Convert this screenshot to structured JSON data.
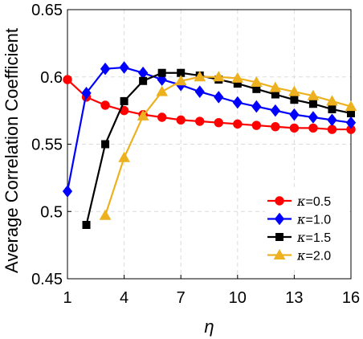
{
  "chart_data": {
    "type": "line",
    "title": "",
    "xlabel": "η",
    "ylabel": "Average Correlation Coefficient",
    "xlim": [
      1,
      16
    ],
    "ylim": [
      0.45,
      0.65
    ],
    "xticks": [
      1,
      4,
      7,
      10,
      13,
      16
    ],
    "xtick_labels": [
      "1",
      "4",
      "7",
      "10",
      "13",
      "16"
    ],
    "yticks": [
      0.45,
      0.5,
      0.55,
      0.6,
      0.65
    ],
    "ytick_labels": [
      "0.45",
      "0.5",
      "0.55",
      "0.6",
      "0.65"
    ],
    "grid": true,
    "legend_position": "bottom-right",
    "series": [
      {
        "name": "κ=0.5",
        "legend_symbol": "κ",
        "legend_value": "=0.5",
        "color": "#ff0000",
        "marker": "circle",
        "x": [
          1,
          2,
          3,
          4,
          5,
          6,
          7,
          8,
          9,
          10,
          11,
          12,
          13,
          14,
          15,
          16
        ],
        "y": [
          0.598,
          0.585,
          0.579,
          0.575,
          0.572,
          0.57,
          0.568,
          0.567,
          0.566,
          0.565,
          0.564,
          0.563,
          0.562,
          0.562,
          0.561,
          0.561
        ]
      },
      {
        "name": "κ=1.0",
        "legend_symbol": "κ",
        "legend_value": "=1.0",
        "color": "#0000ff",
        "marker": "diamond",
        "x": [
          1,
          2,
          3,
          4,
          5,
          6,
          7,
          8,
          9,
          10,
          11,
          12,
          13,
          14,
          15,
          16
        ],
        "y": [
          0.515,
          0.588,
          0.606,
          0.607,
          0.603,
          0.598,
          0.594,
          0.589,
          0.585,
          0.581,
          0.578,
          0.575,
          0.572,
          0.57,
          0.568,
          0.566
        ]
      },
      {
        "name": "κ=1.5",
        "legend_symbol": "κ",
        "legend_value": "=1.5",
        "color": "#000000",
        "marker": "square",
        "x": [
          2,
          3,
          4,
          5,
          6,
          7,
          8,
          9,
          10,
          11,
          12,
          13,
          14,
          15,
          16
        ],
        "y": [
          0.49,
          0.55,
          0.582,
          0.597,
          0.603,
          0.603,
          0.601,
          0.598,
          0.595,
          0.591,
          0.587,
          0.583,
          0.58,
          0.576,
          0.573
        ]
      },
      {
        "name": "κ=2.0",
        "legend_symbol": "κ",
        "legend_value": "=2.0",
        "color": "#edb120",
        "marker": "triangle",
        "x": [
          3,
          4,
          5,
          6,
          7,
          8,
          9,
          10,
          11,
          12,
          13,
          14,
          15,
          16
        ],
        "y": [
          0.497,
          0.54,
          0.571,
          0.589,
          0.597,
          0.6,
          0.6,
          0.599,
          0.596,
          0.592,
          0.589,
          0.586,
          0.582,
          0.578
        ]
      }
    ]
  }
}
